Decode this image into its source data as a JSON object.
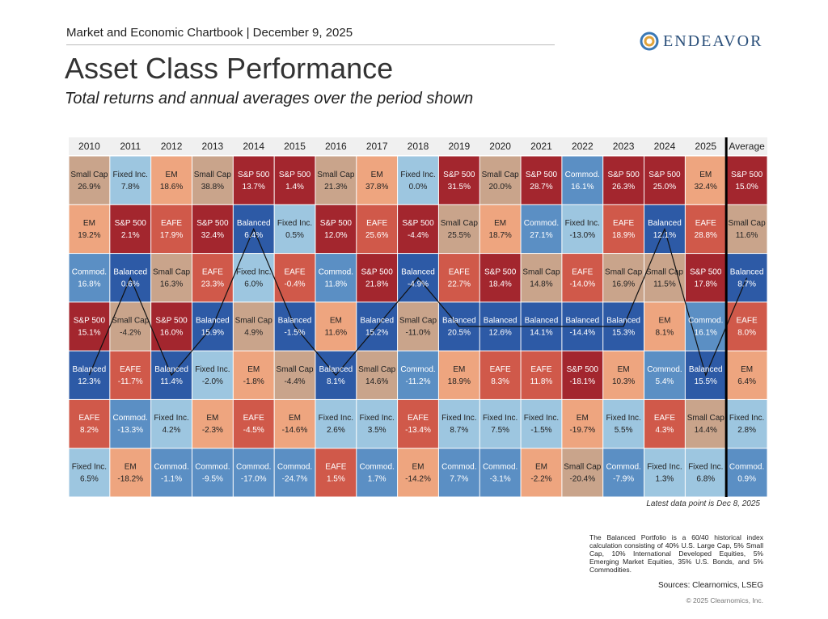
{
  "header": {
    "breadcrumb": "Market and Economic Chartbook | December 9, 2025",
    "logo": "ENDEAVOR",
    "title": "Asset Class Performance",
    "subtitle": "Total returns and annual averages over the period shown"
  },
  "table": {
    "columns": [
      "2010",
      "2011",
      "2012",
      "2013",
      "2014",
      "2015",
      "2016",
      "2017",
      "2018",
      "2019",
      "2020",
      "2021",
      "2022",
      "2023",
      "2024",
      "2025",
      "Average"
    ],
    "colors": {
      "S&P 500": "#a3262e",
      "Small Cap": "#c9a48b",
      "EM": "#eea57f",
      "EAFE": "#d0594a",
      "Fixed Inc.": "#9dc6e0",
      "Commod.": "#5b8fc4",
      "Balanced": "#2d5aa6"
    },
    "dark_text": [
      "Small Cap",
      "EM",
      "Fixed Inc."
    ],
    "trace": "Balanced",
    "rows": [
      [
        [
          "Small Cap",
          "26.9%"
        ],
        [
          "Fixed Inc.",
          "7.8%"
        ],
        [
          "EM",
          "18.6%"
        ],
        [
          "Small Cap",
          "38.8%"
        ],
        [
          "S&P 500",
          "13.7%"
        ],
        [
          "S&P 500",
          "1.4%"
        ],
        [
          "Small Cap",
          "21.3%"
        ],
        [
          "EM",
          "37.8%"
        ],
        [
          "Fixed Inc.",
          "0.0%"
        ],
        [
          "S&P 500",
          "31.5%"
        ],
        [
          "Small Cap",
          "20.0%"
        ],
        [
          "S&P 500",
          "28.7%"
        ],
        [
          "Commod.",
          "16.1%"
        ],
        [
          "S&P 500",
          "26.3%"
        ],
        [
          "S&P 500",
          "25.0%"
        ],
        [
          "EM",
          "32.4%"
        ],
        [
          "S&P 500",
          "15.0%"
        ]
      ],
      [
        [
          "EM",
          "19.2%"
        ],
        [
          "S&P 500",
          "2.1%"
        ],
        [
          "EAFE",
          "17.9%"
        ],
        [
          "S&P 500",
          "32.4%"
        ],
        [
          "Balanced",
          "6.4%"
        ],
        [
          "Fixed Inc.",
          "0.5%"
        ],
        [
          "S&P 500",
          "12.0%"
        ],
        [
          "EAFE",
          "25.6%"
        ],
        [
          "S&P 500",
          "-4.4%"
        ],
        [
          "Small Cap",
          "25.5%"
        ],
        [
          "EM",
          "18.7%"
        ],
        [
          "Commod.",
          "27.1%"
        ],
        [
          "Fixed Inc.",
          "-13.0%"
        ],
        [
          "EAFE",
          "18.9%"
        ],
        [
          "Balanced",
          "12.1%"
        ],
        [
          "EAFE",
          "28.8%"
        ],
        [
          "Small Cap",
          "11.6%"
        ]
      ],
      [
        [
          "Commod.",
          "16.8%"
        ],
        [
          "Balanced",
          "0.6%"
        ],
        [
          "Small Cap",
          "16.3%"
        ],
        [
          "EAFE",
          "23.3%"
        ],
        [
          "Fixed Inc.",
          "6.0%"
        ],
        [
          "EAFE",
          "-0.4%"
        ],
        [
          "Commod.",
          "11.8%"
        ],
        [
          "S&P 500",
          "21.8%"
        ],
        [
          "Balanced",
          "-4.9%"
        ],
        [
          "EAFE",
          "22.7%"
        ],
        [
          "S&P 500",
          "18.4%"
        ],
        [
          "Small Cap",
          "14.8%"
        ],
        [
          "EAFE",
          "-14.0%"
        ],
        [
          "Small Cap",
          "16.9%"
        ],
        [
          "Small Cap",
          "11.5%"
        ],
        [
          "S&P 500",
          "17.8%"
        ],
        [
          "Balanced",
          "8.7%"
        ]
      ],
      [
        [
          "S&P 500",
          "15.1%"
        ],
        [
          "Small Cap",
          "-4.2%"
        ],
        [
          "S&P 500",
          "16.0%"
        ],
        [
          "Balanced",
          "15.9%"
        ],
        [
          "Small Cap",
          "4.9%"
        ],
        [
          "Balanced",
          "-1.5%"
        ],
        [
          "EM",
          "11.6%"
        ],
        [
          "Balanced",
          "15.2%"
        ],
        [
          "Small Cap",
          "-11.0%"
        ],
        [
          "Balanced",
          "20.5%"
        ],
        [
          "Balanced",
          "12.6%"
        ],
        [
          "Balanced",
          "14.1%"
        ],
        [
          "Balanced",
          "-14.4%"
        ],
        [
          "Balanced",
          "15.3%"
        ],
        [
          "EM",
          "8.1%"
        ],
        [
          "Commod.",
          "16.1%"
        ],
        [
          "EAFE",
          "8.0%"
        ]
      ],
      [
        [
          "Balanced",
          "12.3%"
        ],
        [
          "EAFE",
          "-11.7%"
        ],
        [
          "Balanced",
          "11.4%"
        ],
        [
          "Fixed Inc.",
          "-2.0%"
        ],
        [
          "EM",
          "-1.8%"
        ],
        [
          "Small Cap",
          "-4.4%"
        ],
        [
          "Balanced",
          "8.1%"
        ],
        [
          "Small Cap",
          "14.6%"
        ],
        [
          "Commod.",
          "-11.2%"
        ],
        [
          "EM",
          "18.9%"
        ],
        [
          "EAFE",
          "8.3%"
        ],
        [
          "EAFE",
          "11.8%"
        ],
        [
          "S&P 500",
          "-18.1%"
        ],
        [
          "EM",
          "10.3%"
        ],
        [
          "Commod.",
          "5.4%"
        ],
        [
          "Balanced",
          "15.5%"
        ],
        [
          "EM",
          "6.4%"
        ]
      ],
      [
        [
          "EAFE",
          "8.2%"
        ],
        [
          "Commod.",
          "-13.3%"
        ],
        [
          "Fixed Inc.",
          "4.2%"
        ],
        [
          "EM",
          "-2.3%"
        ],
        [
          "EAFE",
          "-4.5%"
        ],
        [
          "EM",
          "-14.6%"
        ],
        [
          "Fixed Inc.",
          "2.6%"
        ],
        [
          "Fixed Inc.",
          "3.5%"
        ],
        [
          "EAFE",
          "-13.4%"
        ],
        [
          "Fixed Inc.",
          "8.7%"
        ],
        [
          "Fixed Inc.",
          "7.5%"
        ],
        [
          "Fixed Inc.",
          "-1.5%"
        ],
        [
          "EM",
          "-19.7%"
        ],
        [
          "Fixed Inc.",
          "5.5%"
        ],
        [
          "EAFE",
          "4.3%"
        ],
        [
          "Small Cap",
          "14.4%"
        ],
        [
          "Fixed Inc.",
          "2.8%"
        ]
      ],
      [
        [
          "Fixed Inc.",
          "6.5%"
        ],
        [
          "EM",
          "-18.2%"
        ],
        [
          "Commod.",
          "-1.1%"
        ],
        [
          "Commod.",
          "-9.5%"
        ],
        [
          "Commod.",
          "-17.0%"
        ],
        [
          "Commod.",
          "-24.7%"
        ],
        [
          "EAFE",
          "1.5%"
        ],
        [
          "Commod.",
          "1.7%"
        ],
        [
          "EM",
          "-14.2%"
        ],
        [
          "Commod.",
          "7.7%"
        ],
        [
          "Commod.",
          "-3.1%"
        ],
        [
          "EM",
          "-2.2%"
        ],
        [
          "Small Cap",
          "-20.4%"
        ],
        [
          "Commod.",
          "-7.9%"
        ],
        [
          "Fixed Inc.",
          "1.3%"
        ],
        [
          "Fixed Inc.",
          "6.8%"
        ],
        [
          "Commod.",
          "0.9%"
        ]
      ]
    ]
  },
  "footer": {
    "data_note": "Latest data point is Dec 8, 2025",
    "footnote": "The Balanced Portfolio is a 60/40 historical index calculation consisting of 40% U.S. Large Cap, 5% Small Cap, 10% International Developed Equities, 5% Emerging Market Equities, 35% U.S. Bonds, and 5% Commodities.",
    "sources": "Sources: Clearnomics, LSEG",
    "copyright": "© 2025 Clearnomics, Inc."
  }
}
